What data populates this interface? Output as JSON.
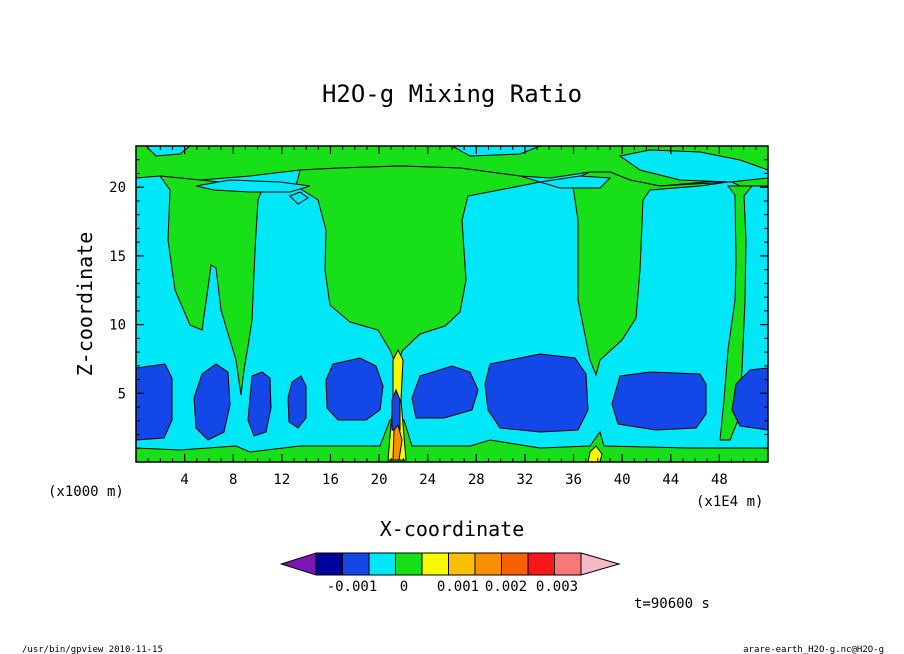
{
  "chart_data": {
    "type": "heatmap",
    "title": "H2O-g Mixing Ratio",
    "xlabel": "X-coordinate",
    "ylabel": "Z-coordinate",
    "x_unit_left": "(x1000 m)",
    "x_unit_right": "(x1E4 m)",
    "xlim": [
      0,
      52
    ],
    "ylim": [
      0,
      23
    ],
    "x_ticks": [
      4,
      8,
      12,
      16,
      20,
      24,
      28,
      32,
      36,
      40,
      44,
      48
    ],
    "y_ticks": [
      5,
      10,
      15,
      20
    ],
    "time_label": "t=90600 s",
    "colorbar": {
      "tick_labels": [
        "-0.001",
        "0",
        "0.001",
        "0.002",
        "0.003"
      ],
      "colors": [
        "#7b16b4",
        "#00009e",
        "#1447e8",
        "#00e8f8",
        "#18e018",
        "#f8f800",
        "#f8c000",
        "#f89000",
        "#f86000",
        "#f81818",
        "#f87878",
        "#f8b8c8"
      ]
    },
    "footer_left": "/usr/bin/gpview   2010-11-15",
    "footer_right": "arare-earth_H2O-g.nc@H2O-g"
  }
}
